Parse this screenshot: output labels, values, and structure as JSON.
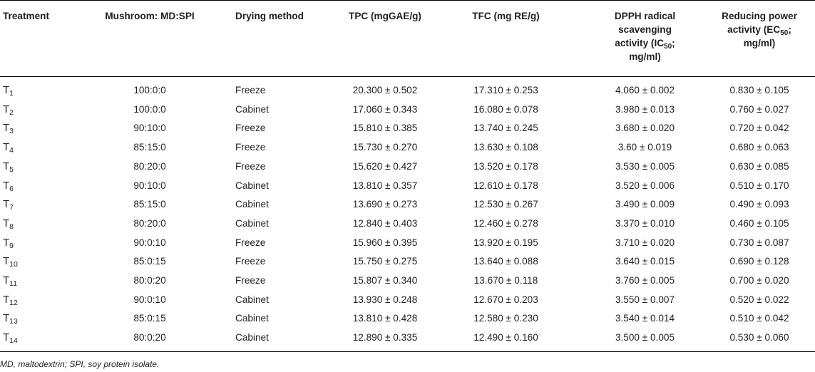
{
  "table": {
    "headers": {
      "treatment": "Treatment",
      "ratio": "Mushroom: MD:SPI",
      "drying": "Drying method",
      "tpc": "TPC (mgGAE/g)",
      "tfc": "TFC (mg RE/g)",
      "dpph_line1": "DPPH radical",
      "dpph_line2": "scavenging",
      "dpph_line3_pre": "activity (IC",
      "dpph_line3_sub": "50",
      "dpph_line3_post": ";",
      "dpph_line4": "mg/ml)",
      "red_line1": "Reducing power",
      "red_line2_pre": "activity (EC",
      "red_line2_sub": "50",
      "red_line2_post": ";",
      "red_line3": "mg/ml)"
    },
    "rows": [
      {
        "t": "T",
        "sub": "1",
        "ratio": "100:0:0",
        "method": "Freeze",
        "tpc": "20.300 ± 0.502",
        "tfc": "17.310 ± 0.253",
        "dpph": "4.060 ± 0.002",
        "red": "0.830 ± 0.105"
      },
      {
        "t": "T",
        "sub": "2",
        "ratio": "100:0:0",
        "method": "Cabinet",
        "tpc": "17.060 ± 0.343",
        "tfc": "16.080 ± 0.078",
        "dpph": "3.980 ± 0.013",
        "red": "0.760 ± 0.027"
      },
      {
        "t": "T",
        "sub": "3",
        "ratio": "90:10:0",
        "method": "Freeze",
        "tpc": "15.810 ± 0.385",
        "tfc": "13.740 ± 0.245",
        "dpph": "3.680 ± 0.020",
        "red": "0.720 ± 0.042"
      },
      {
        "t": "T",
        "sub": "4",
        "ratio": "85:15:0",
        "method": "Freeze",
        "tpc": "15.730 ± 0.270",
        "tfc": "13.630 ± 0.108",
        "dpph": "3.60 ± 0.019",
        "red": "0.680 ± 0.063"
      },
      {
        "t": "T",
        "sub": "5",
        "ratio": "80:20:0",
        "method": "Freeze",
        "tpc": "15.620 ± 0.427",
        "tfc": "13.520 ± 0.178",
        "dpph": "3.530 ± 0.005",
        "red": "0.630 ± 0.085"
      },
      {
        "t": "T",
        "sub": "6",
        "ratio": "90:10:0",
        "method": "Cabinet",
        "tpc": "13.810 ± 0.357",
        "tfc": "12.610 ± 0.178",
        "dpph": "3.520 ± 0.006",
        "red": "0.510 ± 0.170"
      },
      {
        "t": "T",
        "sub": "7",
        "ratio": "85:15:0",
        "method": "Cabinet",
        "tpc": "13.690 ± 0.273",
        "tfc": "12.530 ± 0.267",
        "dpph": "3.490 ± 0.009",
        "red": "0.490 ± 0.093"
      },
      {
        "t": "T",
        "sub": "8",
        "ratio": "80:20:0",
        "method": "Cabinet",
        "tpc": "12.840 ± 0.403",
        "tfc": "12.460 ± 0.278",
        "dpph": "3.370 ± 0.010",
        "red": "0.460 ± 0.105"
      },
      {
        "t": "T",
        "sub": "9",
        "ratio": "90:0:10",
        "method": "Freeze",
        "tpc": "15.960 ± 0.395",
        "tfc": "13.920 ± 0.195",
        "dpph": "3.710 ± 0.020",
        "red": "0.730 ± 0.087"
      },
      {
        "t": "T",
        "sub": "10",
        "ratio": "85:0:15",
        "method": "Freeze",
        "tpc": "15.750 ± 0.275",
        "tfc": "13.640 ± 0.088",
        "dpph": "3.640 ± 0.015",
        "red": "0.690 ± 0.128"
      },
      {
        "t": "T",
        "sub": "11",
        "ratio": "80:0:20",
        "method": "Freeze",
        "tpc": "15.807 ± 0.340",
        "tfc": "13.670 ± 0.118",
        "dpph": "3.760 ± 0.005",
        "red": "0.700 ± 0.020"
      },
      {
        "t": "T",
        "sub": "12",
        "ratio": "90:0:10",
        "method": "Cabinet",
        "tpc": "13.930 ± 0.248",
        "tfc": "12.670 ± 0.203",
        "dpph": "3.550 ± 0.007",
        "red": "0.520 ± 0.022"
      },
      {
        "t": "T",
        "sub": "13",
        "ratio": "85:0:15",
        "method": "Cabinet",
        "tpc": "13.810 ± 0.428",
        "tfc": "12.580 ± 0.230",
        "dpph": "3.540 ± 0.014",
        "red": "0.510 ± 0.042"
      },
      {
        "t": "T",
        "sub": "14",
        "ratio": "80:0:20",
        "method": "Cabinet",
        "tpc": "12.890 ± 0.335",
        "tfc": "12.490 ± 0.160",
        "dpph": "3.500 ± 0.005",
        "red": "0.530 ± 0.060"
      }
    ],
    "footnote": "MD, maltodextrin; SPI, soy protein isolate."
  }
}
